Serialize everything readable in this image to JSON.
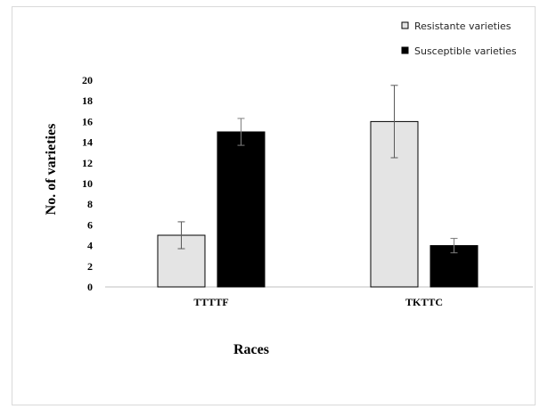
{
  "chart_data": {
    "type": "bar",
    "categories": [
      "TTTTF",
      "TKTTC"
    ],
    "series": [
      {
        "name": "Resistante varieties",
        "values": [
          5,
          16
        ],
        "errors": [
          1.3,
          3.5
        ],
        "fill": "#e4e4e4",
        "stroke": "#000000"
      },
      {
        "name": "Susceptible varieties",
        "values": [
          15,
          4
        ],
        "errors": [
          1.3,
          0.7
        ],
        "fill": "#000000",
        "stroke": "#000000"
      }
    ],
    "xlabel": "Races",
    "ylabel": "No. of varieties",
    "ylim": [
      0,
      20
    ],
    "yticks": [
      "0",
      "2",
      "4",
      "6",
      "8",
      "10",
      "12",
      "14",
      "16",
      "18",
      "20"
    ],
    "grid": false,
    "legend_position": "top-right"
  }
}
